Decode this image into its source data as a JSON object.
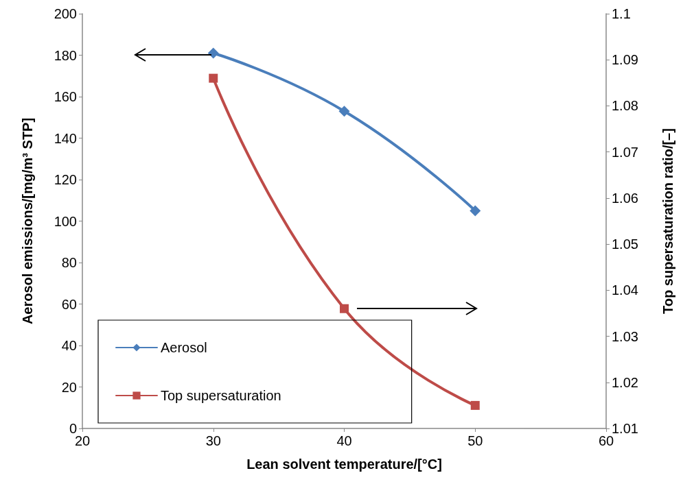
{
  "chart_data": {
    "type": "line",
    "xlabel": "Lean solvent temperature/[°C]",
    "ylabel": "Aerosol emissions/[mg/m³ STP]",
    "y2label": "Top supersaturation ratio/[–]",
    "x": [
      30,
      40,
      50
    ],
    "series": [
      {
        "name": "Aerosol",
        "color": "#4a7ebb",
        "marker": "diamond",
        "values": [
          181,
          153,
          105
        ]
      },
      {
        "name": "Top supersaturation",
        "color": "#be4b48",
        "marker": "square",
        "axis": "y2",
        "values": [
          1.086,
          1.036,
          1.015
        ]
      }
    ],
    "xlim": [
      20,
      60
    ],
    "xticks": [
      20,
      30,
      40,
      50,
      60
    ],
    "ylim": [
      0,
      200
    ],
    "yticks": [
      0,
      20,
      40,
      60,
      80,
      100,
      120,
      140,
      160,
      180,
      200
    ],
    "y2lim": [
      1.01,
      1.1
    ],
    "y2ticks": [
      1.01,
      1.02,
      1.03,
      1.04,
      1.05,
      1.06,
      1.07,
      1.08,
      1.09,
      1.1
    ],
    "grid": false,
    "legend": "bottom left",
    "line_style": "solid"
  }
}
